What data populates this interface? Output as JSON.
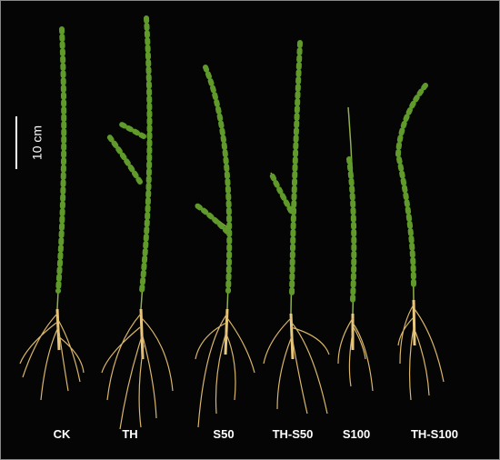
{
  "scale_bar": {
    "label": "10 cm"
  },
  "plants": [
    {
      "label": "CK"
    },
    {
      "label": "TH"
    },
    {
      "label": "S50"
    },
    {
      "label": "TH-S50"
    },
    {
      "label": "S100"
    },
    {
      "label": "TH-S100"
    }
  ]
}
